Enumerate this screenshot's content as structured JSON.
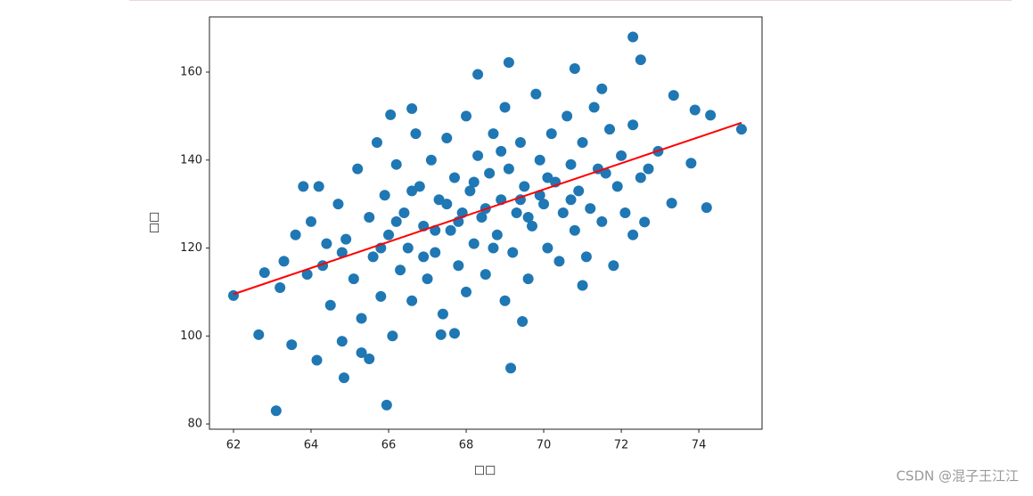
{
  "chart_data": {
    "type": "scatter",
    "x_label": "□□",
    "y_label": "□□",
    "x": [
      63.1,
      65.95,
      69.15,
      64.85,
      72.3,
      72.5,
      69.1,
      75.1,
      74.2,
      73.8,
      74.3,
      73.9,
      73.35,
      62,
      62.65,
      62.8,
      63.5,
      65.5,
      66.05,
      66.6,
      68.3,
      70.8,
      71.5,
      72.95,
      73.3,
      72.3,
      72.6,
      71,
      69.45,
      67.35,
      67.7,
      64.15,
      65.3,
      64.8,
      63.2,
      63.3,
      63.6,
      63.8,
      64.2,
      64,
      64.3,
      64.5,
      64.7,
      64.9,
      65.1,
      65.2,
      65.3,
      65.5,
      65.6,
      65.7,
      65.8,
      65.9,
      66,
      66.1,
      66.2,
      66.3,
      66.4,
      66.5,
      66.6,
      66.7,
      66.8,
      66.9,
      67,
      67.1,
      67.2,
      67.3,
      67.4,
      67.5,
      67.6,
      67.7,
      67.8,
      67.9,
      68,
      68,
      68.1,
      68.2,
      68.3,
      68.4,
      68.5,
      68.6,
      68.7,
      68.8,
      68.9,
      69,
      69,
      69.1,
      69.2,
      69.3,
      69.4,
      69.5,
      69.6,
      69.7,
      69.8,
      69.9,
      70,
      70.1,
      70.2,
      70.3,
      70.4,
      70.5,
      70.6,
      70.7,
      70.8,
      70.9,
      71,
      71.1,
      71.2,
      71.3,
      71.4,
      71.5,
      71.7,
      71.8,
      71.9,
      72,
      72.1,
      72.3,
      72.5,
      72.7,
      66.9,
      67.5,
      68.2,
      68.7,
      69.4,
      70.1,
      67.8,
      68.5,
      69.6,
      66.2,
      65.8,
      64.8,
      64.4,
      63.9,
      70.7,
      71.6,
      67.2,
      68.9,
      69.9,
      66.6
    ],
    "values": [
      83,
      84.3,
      92.7,
      90.5,
      168,
      162.8,
      162.2,
      147,
      129.2,
      139.3,
      150.2,
      151.4,
      154.7,
      109.2,
      100.3,
      114.4,
      98,
      94.8,
      150.3,
      151.7,
      159.5,
      160.8,
      156.2,
      142,
      130.2,
      123,
      125.9,
      111.5,
      103.3,
      100.3,
      100.6,
      94.5,
      96.2,
      98.8,
      111,
      117,
      123,
      134,
      134,
      126,
      116,
      107,
      130,
      122,
      113,
      138,
      104,
      127,
      118,
      144,
      109,
      132,
      123,
      100,
      139,
      115,
      128,
      120,
      108,
      146,
      134,
      125,
      113,
      140,
      119,
      131,
      105,
      145,
      124,
      136,
      116,
      128,
      150,
      110,
      133,
      121,
      141,
      127,
      114,
      137,
      146,
      123,
      131,
      108,
      152,
      138,
      119,
      128,
      144,
      134,
      113,
      125,
      155,
      140,
      130,
      120,
      146,
      135,
      117,
      128,
      150,
      139,
      124,
      133,
      144,
      118,
      129,
      152,
      138,
      126,
      147,
      116,
      134,
      141,
      128,
      148,
      136,
      138,
      118,
      130,
      135,
      120,
      131,
      136,
      126,
      129,
      127,
      126,
      120,
      119,
      121,
      114,
      131,
      137,
      124,
      142,
      132,
      133
    ],
    "color": "#1f77b4",
    "fit": {
      "x": [
        62,
        75.1
      ],
      "values": [
        109.5,
        148.5
      ],
      "color": "#ff0000"
    },
    "xlim": [
      61.38,
      75.63
    ],
    "ylim": [
      78.8,
      172.55
    ],
    "xticks": [
      62,
      64,
      66,
      68,
      70,
      72,
      74
    ],
    "yticks": [
      80,
      100,
      120,
      140,
      160
    ]
  },
  "watermark": "CSDN @混子王江江"
}
